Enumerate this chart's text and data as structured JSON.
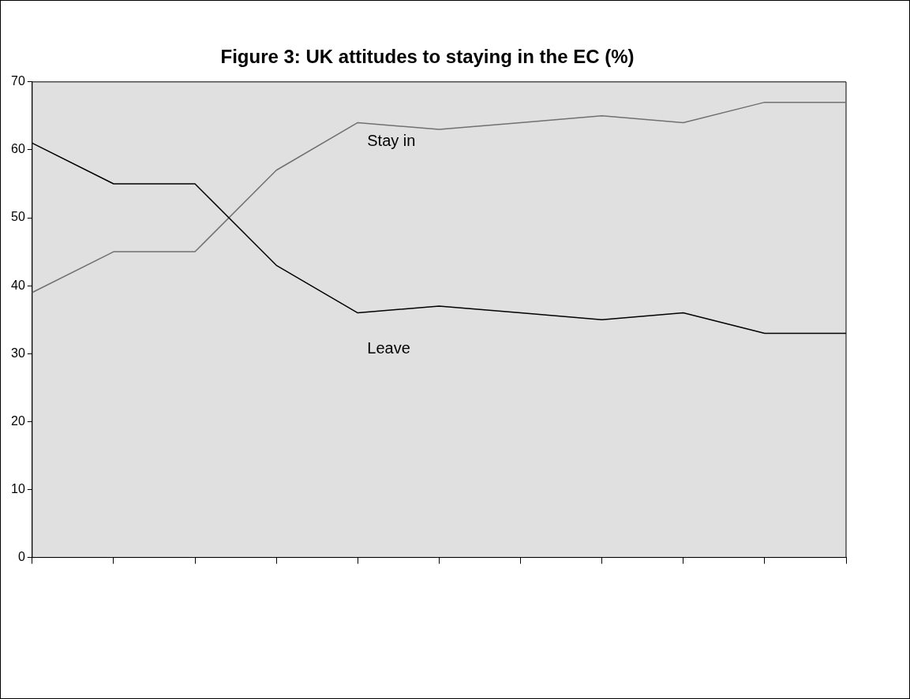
{
  "chart_data": {
    "type": "line",
    "title": "Figure 3: UK attitudes to staying in the EC (%)",
    "categories": [
      null,
      null,
      null,
      null,
      null,
      null,
      null,
      null,
      null,
      null,
      null
    ],
    "series": [
      {
        "name": "Leave",
        "color": "#000000",
        "values": [
          61,
          55,
          55,
          43,
          36,
          37,
          36,
          35,
          36,
          33,
          33
        ]
      },
      {
        "name": "Stay in",
        "color": "#707070",
        "values": [
          39,
          45,
          45,
          57,
          64,
          63,
          64,
          65,
          64,
          67,
          67
        ]
      }
    ],
    "ylim": [
      0,
      70
    ],
    "yticks": [
      0,
      10,
      20,
      30,
      40,
      50,
      60,
      70
    ],
    "grid": false,
    "legend": false,
    "marker": "none",
    "line_style": "solid"
  }
}
